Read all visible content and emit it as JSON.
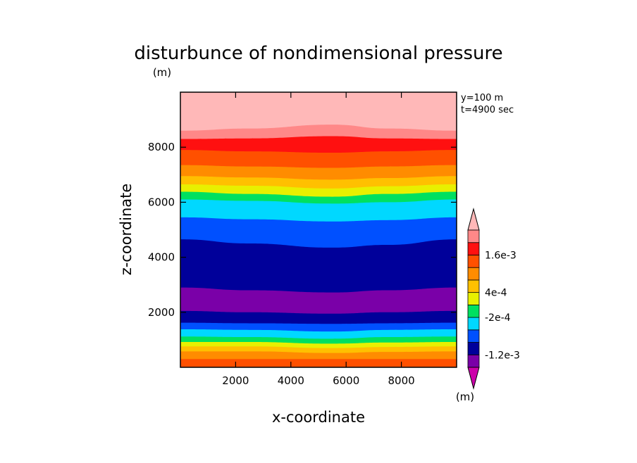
{
  "chart_data": {
    "type": "contour",
    "title": "disturbunce of nondimensional pressure",
    "unit_label": "(m)",
    "xlabel": "x-coordinate",
    "ylabel": "z-coordinate",
    "xlim": [
      0,
      10000
    ],
    "ylim": [
      0,
      10000
    ],
    "xticks": [
      2000,
      4000,
      6000,
      8000
    ],
    "yticks": [
      2000,
      4000,
      6000,
      8000
    ],
    "xtick_labels": [
      "2000",
      "4000",
      "6000",
      "8000"
    ],
    "ytick_labels": [
      "2000",
      "4000",
      "6000",
      "8000"
    ],
    "annotation_y": "y=100 m",
    "annotation_t": "t=4900 sec",
    "colorbar": {
      "label": "(m)",
      "tick_labels": [
        "1.6e-3",
        "4e-4",
        "-2e-4",
        "-1.2e-3"
      ],
      "tick_bounds": [
        9,
        6,
        4,
        1
      ],
      "colors": [
        "#cc00aa",
        "#7a00a8",
        "#00009a",
        "#0050ff",
        "#00d8ff",
        "#00e060",
        "#e8f000",
        "#ffc000",
        "#ff8c00",
        "#ff5000",
        "#ff1010",
        "#ff8888",
        "#ffb8b8"
      ]
    },
    "contour_bands": [
      {
        "color": "#ff5000",
        "top": [
          300,
          300,
          300,
          300,
          300
        ]
      },
      {
        "color": "#ff8c00",
        "top": [
          580,
          580,
          520,
          560,
          580
        ]
      },
      {
        "color": "#ffc000",
        "top": [
          760,
          760,
          700,
          740,
          760
        ]
      },
      {
        "color": "#e8f000",
        "top": [
          920,
          920,
          860,
          900,
          920
        ]
      },
      {
        "color": "#00e060",
        "top": [
          1120,
          1100,
          1040,
          1100,
          1120
        ]
      },
      {
        "color": "#00d8ff",
        "top": [
          1380,
          1360,
          1300,
          1360,
          1380
        ]
      },
      {
        "color": "#0050ff",
        "top": [
          1620,
          1600,
          1580,
          1600,
          1620
        ]
      },
      {
        "color": "#00009a",
        "top": [
          2050,
          2000,
          1950,
          2000,
          2050
        ]
      },
      {
        "color": "#7a00a8",
        "top": [
          2900,
          2800,
          2720,
          2800,
          2900
        ]
      },
      {
        "color": "#00009a",
        "top": [
          4650,
          4500,
          4350,
          4450,
          4650
        ]
      },
      {
        "color": "#0050ff",
        "top": [
          5450,
          5380,
          5300,
          5350,
          5450
        ]
      },
      {
        "color": "#00d8ff",
        "top": [
          6100,
          6050,
          5950,
          6000,
          6100
        ]
      },
      {
        "color": "#00e060",
        "top": [
          6380,
          6300,
          6200,
          6300,
          6380
        ]
      },
      {
        "color": "#e8f000",
        "top": [
          6650,
          6600,
          6500,
          6580,
          6650
        ]
      },
      {
        "color": "#ffc000",
        "top": [
          6950,
          6900,
          6820,
          6880,
          6950
        ]
      },
      {
        "color": "#ff8c00",
        "top": [
          7350,
          7300,
          7250,
          7300,
          7350
        ]
      },
      {
        "color": "#ff5000",
        "top": [
          7900,
          7850,
          7800,
          7850,
          7900
        ]
      },
      {
        "color": "#ff1010",
        "top": [
          8300,
          8320,
          8400,
          8320,
          8300
        ]
      },
      {
        "color": "#ff8888",
        "top": [
          8600,
          8680,
          8820,
          8680,
          8600
        ]
      },
      {
        "color": "#ffb8b8",
        "top": [
          10000,
          10000,
          10000,
          10000,
          10000
        ]
      }
    ],
    "contour_x_nodes": [
      0,
      2500,
      5500,
      7500,
      10000
    ]
  }
}
